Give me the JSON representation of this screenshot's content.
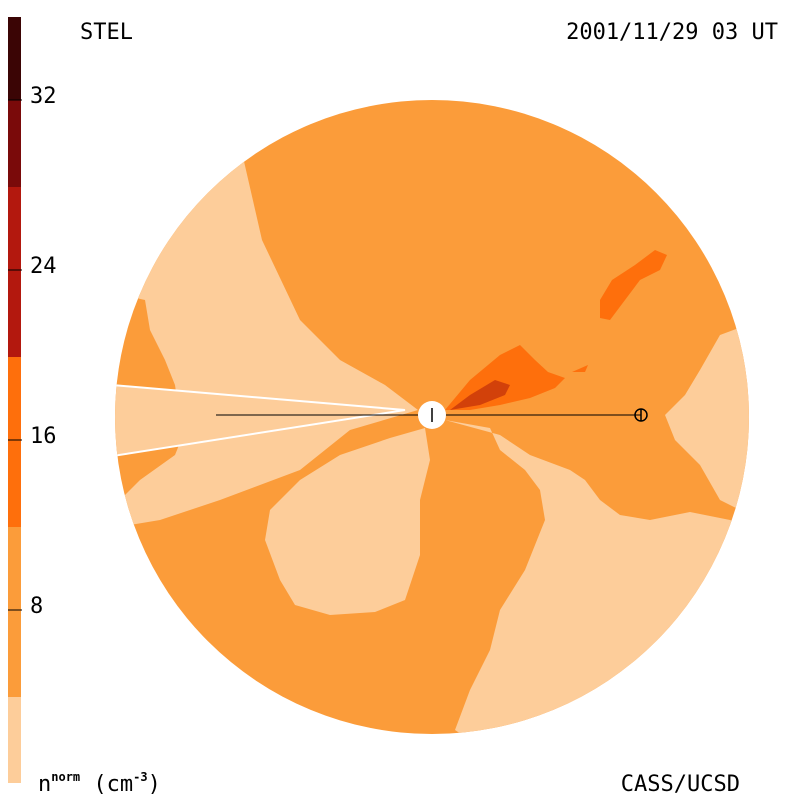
{
  "header": {
    "observatory": "STEL",
    "timestamp": "2001/11/29 03 UT"
  },
  "footer": {
    "credit": "CASS/UCSD",
    "unit_symbol": "n",
    "unit_superscript": "norm",
    "unit_text": "(cm",
    "unit_exponent": "-3",
    "unit_close": ")"
  },
  "colorbar": {
    "tick_labels": [
      "8",
      "16",
      "24",
      "32"
    ],
    "levels": [
      {
        "color": "#fdcd9a"
      },
      {
        "color": "#fb9c3a"
      },
      {
        "color": "#fe6f0c"
      },
      {
        "color": "#e04a10"
      },
      {
        "color": "#b3180e"
      },
      {
        "color": "#7a0a0a"
      },
      {
        "color": "#3b0505"
      }
    ]
  },
  "colors": {
    "low": "#fdcd9a",
    "mid": "#fb9c3a",
    "high": "#fe6f0c",
    "peak": "#d2410a",
    "marker": "#000000"
  }
}
